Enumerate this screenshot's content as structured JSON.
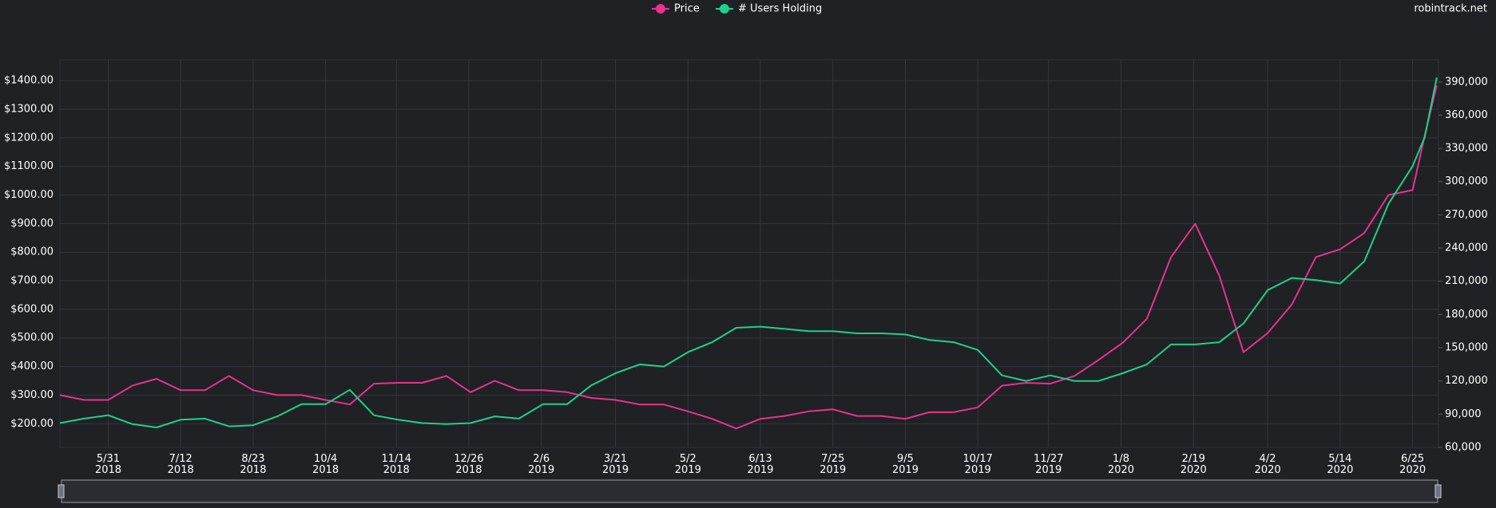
{
  "chart_data": {
    "type": "line",
    "source": "robintrack.net",
    "x": [
      "2018-05-03",
      "2018-05-17",
      "2018-05-31",
      "2018-06-14",
      "2018-06-28",
      "2018-07-12",
      "2018-07-26",
      "2018-08-09",
      "2018-08-23",
      "2018-09-06",
      "2018-09-20",
      "2018-10-04",
      "2018-10-18",
      "2018-11-01",
      "2018-11-15",
      "2018-11-29",
      "2018-12-13",
      "2018-12-27",
      "2019-01-10",
      "2019-01-24",
      "2019-02-07",
      "2019-02-21",
      "2019-03-07",
      "2019-03-21",
      "2019-04-04",
      "2019-04-18",
      "2019-05-02",
      "2019-05-16",
      "2019-05-30",
      "2019-06-13",
      "2019-06-27",
      "2019-07-11",
      "2019-07-25",
      "2019-08-08",
      "2019-08-22",
      "2019-09-05",
      "2019-09-19",
      "2019-10-03",
      "2019-10-17",
      "2019-10-31",
      "2019-11-14",
      "2019-11-28",
      "2019-12-12",
      "2019-12-26",
      "2020-01-09",
      "2020-01-23",
      "2020-02-06",
      "2020-02-20",
      "2020-03-05",
      "2020-03-19",
      "2020-04-02",
      "2020-04-16",
      "2020-04-30",
      "2020-05-14",
      "2020-05-28",
      "2020-06-11",
      "2020-06-25",
      "2020-07-02",
      "2020-07-09"
    ],
    "series": [
      {
        "name": "Price",
        "color": "#e8328b",
        "values": [
          300,
          283,
          283,
          333,
          357,
          317,
          317,
          367,
          317,
          300,
          300,
          283,
          267,
          340,
          343,
          343,
          367,
          310,
          350,
          317,
          317,
          310,
          290,
          283,
          267,
          267,
          243,
          217,
          183,
          217,
          227,
          243,
          250,
          227,
          227,
          217,
          240,
          240,
          257,
          333,
          343,
          340,
          367,
          423,
          483,
          567,
          783,
          900,
          717,
          450,
          517,
          617,
          783,
          810,
          867,
          1000,
          1017,
          1207,
          1383
        ]
      },
      {
        "name": "# Users Holding",
        "color": "#1fd08f",
        "axis": "y2",
        "values": [
          82000,
          86000,
          89000,
          81000,
          78000,
          85000,
          86000,
          79000,
          80000,
          88000,
          99000,
          99000,
          112000,
          89000,
          85000,
          82000,
          81000,
          82000,
          88000,
          86000,
          99000,
          99000,
          116000,
          127000,
          135000,
          133000,
          146000,
          155000,
          168000,
          169000,
          167000,
          165000,
          165000,
          163000,
          163000,
          162000,
          157000,
          155000,
          148000,
          125000,
          120000,
          125000,
          120000,
          120000,
          127000,
          135000,
          153000,
          153000,
          155000,
          172000,
          202000,
          213000,
          211000,
          208000,
          228000,
          280000,
          314000,
          340000,
          394000
        ]
      }
    ],
    "xlim": [
      "2018-05-03",
      "2020-07-10"
    ],
    "xticks": [
      {
        "value": "2018-05-31",
        "label": "5/31\n2018"
      },
      {
        "value": "2018-07-12",
        "label": "7/12\n2018"
      },
      {
        "value": "2018-08-23",
        "label": "8/23\n2018"
      },
      {
        "value": "2018-10-04",
        "label": "10/4\n2018"
      },
      {
        "value": "2018-11-14",
        "label": "11/14\n2018"
      },
      {
        "value": "2018-12-26",
        "label": "12/26\n2018"
      },
      {
        "value": "2019-02-06",
        "label": "2/6\n2019"
      },
      {
        "value": "2019-03-21",
        "label": "3/21\n2019"
      },
      {
        "value": "2019-05-02",
        "label": "5/2\n2019"
      },
      {
        "value": "2019-06-13",
        "label": "6/13\n2019"
      },
      {
        "value": "2019-07-25",
        "label": "7/25\n2019"
      },
      {
        "value": "2019-09-05",
        "label": "9/5\n2019"
      },
      {
        "value": "2019-10-17",
        "label": "10/17\n2019"
      },
      {
        "value": "2019-11-27",
        "label": "11/27\n2019"
      },
      {
        "value": "2020-01-08",
        "label": "1/8\n2020"
      },
      {
        "value": "2020-02-19",
        "label": "2/19\n2020"
      },
      {
        "value": "2020-04-02",
        "label": "4/2\n2020"
      },
      {
        "value": "2020-05-14",
        "label": "5/14\n2020"
      },
      {
        "value": "2020-06-25",
        "label": "6/25\n2020"
      }
    ],
    "ylim": [
      117,
      1473
    ],
    "yticks": [
      {
        "value": 200,
        "label": "$200.00"
      },
      {
        "value": 300,
        "label": "$300.00"
      },
      {
        "value": 400,
        "label": "$400.00"
      },
      {
        "value": 500,
        "label": "$500.00"
      },
      {
        "value": 600,
        "label": "$600.00"
      },
      {
        "value": 700,
        "label": "$700.00"
      },
      {
        "value": 800,
        "label": "$800.00"
      },
      {
        "value": 900,
        "label": "$900.00"
      },
      {
        "value": 1000,
        "label": "$1000.00"
      },
      {
        "value": 1100,
        "label": "$1100.00"
      },
      {
        "value": 1200,
        "label": "$1200.00"
      },
      {
        "value": 1300,
        "label": "$1300.00"
      },
      {
        "value": 1400,
        "label": "$1400.00"
      }
    ],
    "y2lim": [
      60000,
      410000
    ],
    "y2ticks": [
      {
        "value": 60000,
        "label": "60,000"
      },
      {
        "value": 90000,
        "label": "90,000"
      },
      {
        "value": 120000,
        "label": "120,000"
      },
      {
        "value": 150000,
        "label": "150,000"
      },
      {
        "value": 180000,
        "label": "180,000"
      },
      {
        "value": 210000,
        "label": "210,000"
      },
      {
        "value": 240000,
        "label": "240,000"
      },
      {
        "value": 270000,
        "label": "270,000"
      },
      {
        "value": 300000,
        "label": "300,000"
      },
      {
        "value": 330000,
        "label": "330,000"
      },
      {
        "value": 360000,
        "label": "360,000"
      },
      {
        "value": 390000,
        "label": "390,000"
      }
    ],
    "grid": true,
    "legend": "top"
  }
}
